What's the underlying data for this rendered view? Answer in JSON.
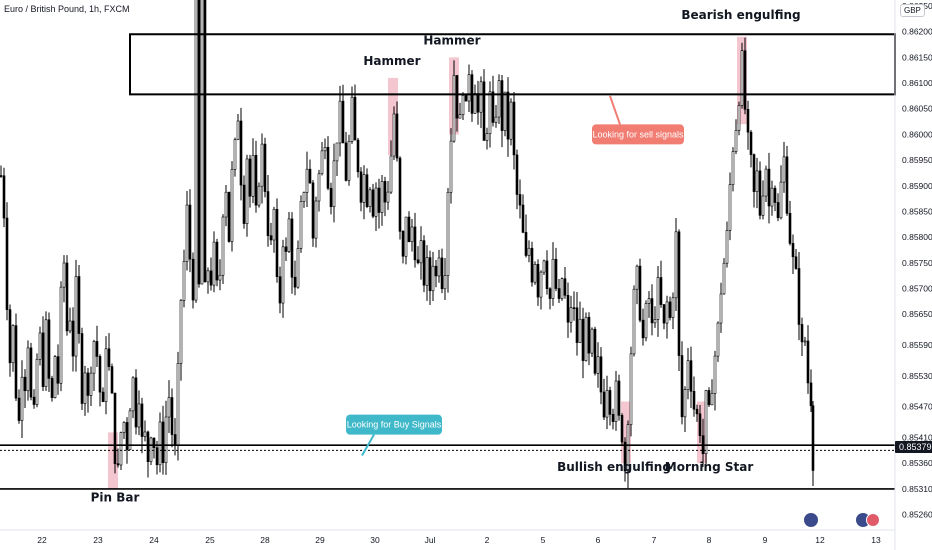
{
  "header": {
    "symbol_title": "Euro / British Pound, 1h, FXCM",
    "currency": "GBP"
  },
  "last_price": "0.85379",
  "colors": {
    "candle": "#000000",
    "highlight": "#f3c6d0",
    "sell_callout": "#f07c72",
    "buy_callout": "#3fb8c9",
    "zone_border": "#000000"
  },
  "chart_data": {
    "type": "candlestick",
    "title": "Euro / British Pound, 1h, FXCM",
    "ylim": [
      0.8523,
      0.8625
    ],
    "y_ticks": [
      "0.86250",
      "0.86200",
      "0.86150",
      "0.86100",
      "0.86050",
      "0.86000",
      "0.85950",
      "0.85900",
      "0.85850",
      "0.85800",
      "0.85750",
      "0.85700",
      "0.85650",
      "0.85590",
      "0.85530",
      "0.85470",
      "0.85410",
      "0.85360",
      "0.85310",
      "0.85260"
    ],
    "x_ticks": [
      "22",
      "23",
      "24",
      "25",
      "28",
      "29",
      "30",
      "Jul",
      "2",
      "5",
      "6",
      "7",
      "8",
      "9",
      "12",
      "13"
    ],
    "price_path": [
      [
        0,
        0.8592
      ],
      [
        3,
        0.8585
      ],
      [
        6,
        0.8568
      ],
      [
        9,
        0.8556
      ],
      [
        12,
        0.8562
      ],
      [
        15,
        0.855
      ],
      [
        18,
        0.8544
      ],
      [
        21,
        0.8555
      ],
      [
        24,
        0.8552
      ],
      [
        27,
        0.856
      ],
      [
        30,
        0.8548
      ],
      [
        33,
        0.8545
      ],
      [
        36,
        0.8556
      ],
      [
        39,
        0.856
      ],
      [
        42,
        0.8553
      ],
      [
        45,
        0.8562
      ],
      [
        48,
        0.8552
      ],
      [
        51,
        0.8548
      ],
      [
        54,
        0.8557
      ],
      [
        57,
        0.8552
      ],
      [
        60,
        0.8568
      ],
      [
        63,
        0.8575
      ],
      [
        66,
        0.8562
      ],
      [
        69,
        0.8565
      ],
      [
        72,
        0.8558
      ],
      [
        75,
        0.857
      ],
      [
        78,
        0.856
      ],
      [
        81,
        0.855
      ],
      [
        84,
        0.8555
      ],
      [
        87,
        0.8548
      ],
      [
        90,
        0.8556
      ],
      [
        93,
        0.856
      ],
      [
        96,
        0.8557
      ],
      [
        99,
        0.855
      ],
      [
        102,
        0.8546
      ],
      [
        105,
        0.856
      ],
      [
        108,
        0.8554
      ],
      [
        111,
        0.8548
      ],
      [
        114,
        0.8538
      ],
      [
        117,
        0.8534
      ],
      [
        120,
        0.8542
      ],
      [
        123,
        0.8544
      ],
      [
        126,
        0.854
      ],
      [
        129,
        0.8548
      ],
      [
        132,
        0.8552
      ],
      [
        135,
        0.8545
      ],
      [
        138,
        0.855
      ],
      [
        141,
        0.854
      ],
      [
        144,
        0.8541
      ],
      [
        147,
        0.8537
      ],
      [
        150,
        0.8543
      ],
      [
        153,
        0.854
      ],
      [
        156,
        0.8536
      ],
      [
        159,
        0.8542
      ],
      [
        162,
        0.8538
      ],
      [
        165,
        0.8545
      ],
      [
        168,
        0.8549
      ],
      [
        171,
        0.8542
      ],
      [
        174,
        0.8538
      ],
      [
        177,
        0.8553
      ],
      [
        180,
        0.8568
      ],
      [
        183,
        0.8575
      ],
      [
        186,
        0.8585
      ],
      [
        189,
        0.8576
      ],
      [
        192,
        0.857
      ],
      [
        195,
        0.8668
      ],
      [
        198,
        0.857
      ],
      [
        201,
        0.8664
      ],
      [
        204,
        0.8569
      ],
      [
        207,
        0.8574
      ],
      [
        210,
        0.8572
      ],
      [
        213,
        0.8577
      ],
      [
        216,
        0.857
      ],
      [
        219,
        0.8573
      ],
      [
        222,
        0.8586
      ],
      [
        225,
        0.859
      ],
      [
        228,
        0.858
      ],
      [
        231,
        0.8592
      ],
      [
        234,
        0.8597
      ],
      [
        237,
        0.8604
      ],
      [
        240,
        0.8592
      ],
      [
        243,
        0.8585
      ],
      [
        246,
        0.8596
      ],
      [
        249,
        0.8588
      ],
      [
        252,
        0.8594
      ],
      [
        255,
        0.8584
      ],
      [
        258,
        0.8592
      ],
      [
        261,
        0.8597
      ],
      [
        264,
        0.859
      ],
      [
        267,
        0.8582
      ],
      [
        270,
        0.8578
      ],
      [
        273,
        0.8585
      ],
      [
        276,
        0.857
      ],
      [
        279,
        0.8568
      ],
      [
        282,
        0.858
      ],
      [
        285,
        0.8576
      ],
      [
        288,
        0.8583
      ],
      [
        291,
        0.8574
      ],
      [
        294,
        0.8569
      ],
      [
        297,
        0.8576
      ],
      [
        300,
        0.8585
      ],
      [
        303,
        0.859
      ],
      [
        306,
        0.8594
      ],
      [
        309,
        0.859
      ],
      [
        312,
        0.858
      ],
      [
        315,
        0.8588
      ],
      [
        318,
        0.8592
      ],
      [
        321,
        0.8596
      ],
      [
        324,
        0.86
      ],
      [
        327,
        0.8592
      ],
      [
        330,
        0.8588
      ],
      [
        333,
        0.8594
      ],
      [
        336,
        0.86
      ],
      [
        339,
        0.8604
      ],
      [
        342,
        0.8598
      ],
      [
        345,
        0.8592
      ],
      [
        348,
        0.8598
      ],
      [
        351,
        0.8605
      ],
      [
        354,
        0.8598
      ],
      [
        357,
        0.8594
      ],
      [
        360,
        0.8589
      ],
      [
        363,
        0.8592
      ],
      [
        366,
        0.8588
      ],
      [
        369,
        0.8591
      ],
      [
        372,
        0.8586
      ],
      [
        375,
        0.859
      ],
      [
        378,
        0.8585
      ],
      [
        381,
        0.859
      ],
      [
        384,
        0.8587
      ],
      [
        387,
        0.859
      ],
      [
        390,
        0.8596
      ],
      [
        393,
        0.8604
      ],
      [
        396,
        0.8594
      ],
      [
        399,
        0.858
      ],
      [
        402,
        0.8575
      ],
      [
        405,
        0.8585
      ],
      [
        408,
        0.8578
      ],
      [
        411,
        0.8582
      ],
      [
        414,
        0.8578
      ],
      [
        417,
        0.8574
      ],
      [
        420,
        0.8577
      ],
      [
        423,
        0.8572
      ],
      [
        426,
        0.8574
      ],
      [
        429,
        0.857
      ],
      [
        432,
        0.8576
      ],
      [
        435,
        0.8572
      ],
      [
        438,
        0.8578
      ],
      [
        441,
        0.8572
      ],
      [
        444,
        0.8575
      ],
      [
        447,
        0.859
      ],
      [
        450,
        0.86
      ],
      [
        453,
        0.8612
      ],
      [
        456,
        0.8605
      ],
      [
        459,
        0.8602
      ],
      [
        462,
        0.861
      ],
      [
        465,
        0.8604
      ],
      [
        468,
        0.8613
      ],
      [
        471,
        0.8606
      ],
      [
        474,
        0.861
      ],
      [
        477,
        0.8604
      ],
      [
        480,
        0.8608
      ],
      [
        483,
        0.8598
      ],
      [
        486,
        0.8602
      ],
      [
        489,
        0.8607
      ],
      [
        492,
        0.86
      ],
      [
        495,
        0.8605
      ],
      [
        498,
        0.8609
      ],
      [
        501,
        0.8602
      ],
      [
        504,
        0.8606
      ],
      [
        507,
        0.86
      ],
      [
        510,
        0.8605
      ],
      [
        513,
        0.8595
      ],
      [
        516,
        0.8588
      ],
      [
        519,
        0.8585
      ],
      [
        522,
        0.858
      ],
      [
        525,
        0.8575
      ],
      [
        528,
        0.8578
      ],
      [
        531,
        0.8573
      ],
      [
        534,
        0.8576
      ],
      [
        537,
        0.857
      ],
      [
        540,
        0.8574
      ],
      [
        543,
        0.8577
      ],
      [
        546,
        0.8572
      ],
      [
        549,
        0.8568
      ],
      [
        552,
        0.8574
      ],
      [
        555,
        0.857
      ],
      [
        558,
        0.8566
      ],
      [
        561,
        0.8572
      ],
      [
        564,
        0.8568
      ],
      [
        567,
        0.8562
      ],
      [
        570,
        0.8567
      ],
      [
        573,
        0.8565
      ],
      [
        576,
        0.856
      ],
      [
        579,
        0.8563
      ],
      [
        582,
        0.8558
      ],
      [
        585,
        0.8562
      ],
      [
        588,
        0.8556
      ],
      [
        591,
        0.856
      ],
      [
        594,
        0.8552
      ],
      [
        597,
        0.8555
      ],
      [
        600,
        0.855
      ],
      [
        603,
        0.8547
      ],
      [
        606,
        0.8552
      ],
      [
        609,
        0.8548
      ],
      [
        612,
        0.8546
      ],
      [
        615,
        0.855
      ],
      [
        618,
        0.8544
      ],
      [
        621,
        0.8542
      ],
      [
        624,
        0.8535
      ],
      [
        627,
        0.8546
      ],
      [
        630,
        0.8558
      ],
      [
        633,
        0.8568
      ],
      [
        636,
        0.8572
      ],
      [
        639,
        0.8566
      ],
      [
        642,
        0.856
      ],
      [
        645,
        0.8565
      ],
      [
        648,
        0.8568
      ],
      [
        651,
        0.8562
      ],
      [
        654,
        0.8566
      ],
      [
        657,
        0.857
      ],
      [
        660,
        0.8566
      ],
      [
        663,
        0.8562
      ],
      [
        666,
        0.8567
      ],
      [
        669,
        0.8564
      ],
      [
        672,
        0.857
      ],
      [
        675,
        0.858
      ],
      [
        678,
        0.8556
      ],
      [
        681,
        0.8545
      ],
      [
        684,
        0.855
      ],
      [
        687,
        0.8557
      ],
      [
        690,
        0.8552
      ],
      [
        693,
        0.8547
      ],
      [
        696,
        0.8545
      ],
      [
        699,
        0.8543
      ],
      [
        702,
        0.8538
      ],
      [
        705,
        0.8548
      ],
      [
        708,
        0.8545
      ],
      [
        711,
        0.8552
      ],
      [
        714,
        0.8557
      ],
      [
        717,
        0.8562
      ],
      [
        720,
        0.857
      ],
      [
        723,
        0.8575
      ],
      [
        726,
        0.858
      ],
      [
        729,
        0.859
      ],
      [
        732,
        0.8598
      ],
      [
        735,
        0.8602
      ],
      [
        738,
        0.8608
      ],
      [
        741,
        0.8614
      ],
      [
        744,
        0.8605
      ],
      [
        747,
        0.8598
      ],
      [
        750,
        0.8594
      ],
      [
        753,
        0.8588
      ],
      [
        756,
        0.8592
      ],
      [
        759,
        0.8585
      ],
      [
        762,
        0.859
      ],
      [
        765,
        0.8594
      ],
      [
        768,
        0.8586
      ],
      [
        771,
        0.8592
      ],
      [
        774,
        0.8588
      ],
      [
        777,
        0.8583
      ],
      [
        780,
        0.859
      ],
      [
        783,
        0.8595
      ],
      [
        786,
        0.8587
      ],
      [
        789,
        0.858
      ],
      [
        792,
        0.8575
      ],
      [
        795,
        0.8572
      ],
      [
        798,
        0.8565
      ],
      [
        801,
        0.8558
      ],
      [
        804,
        0.856
      ],
      [
        807,
        0.8552
      ],
      [
        810,
        0.8549
      ],
      [
        812,
        0.8537
      ]
    ],
    "horizontal_lines": [
      {
        "name": "upper-support",
        "y": 0.85395
      },
      {
        "name": "support-dotted",
        "y": 0.85385,
        "style": "dotted"
      },
      {
        "name": "lower-support",
        "y": 0.8531
      }
    ],
    "resistance_zone": {
      "x_start": 130,
      "x_end": 895,
      "y_top": 0.86195,
      "y_bottom": 0.86078
    },
    "highlights": [
      {
        "x": 113,
        "y_top": 0.8542,
        "y_bottom": 0.8531
      },
      {
        "x": 393,
        "y_top": 0.8611,
        "y_bottom": 0.8596
      },
      {
        "x": 454,
        "y_top": 0.8615,
        "y_bottom": 0.86
      },
      {
        "x": 626,
        "y_top": 0.8548,
        "y_bottom": 0.8536
      },
      {
        "x": 702,
        "y_top": 0.8548,
        "y_bottom": 0.8536
      },
      {
        "x": 742,
        "y_top": 0.8619,
        "y_bottom": 0.8602
      }
    ],
    "annotations": [
      {
        "text": "Pin Bar",
        "x": 115,
        "y": 0.85285
      },
      {
        "text": "Hammer",
        "x": 392,
        "y": 0.86135
      },
      {
        "text": "Hammer",
        "x": 452,
        "y": 0.86175
      },
      {
        "text": "Bearish engulfing",
        "x": 741,
        "y": 0.86225
      },
      {
        "text": "Bullish engulfing",
        "x": 614,
        "y": 0.85345
      },
      {
        "text": "Morning Star",
        "x": 709,
        "y": 0.85345
      }
    ],
    "callouts": [
      {
        "text": "Looking for sell signals",
        "color": "sell",
        "box_x": 592,
        "box_w": 92,
        "y": 0.86,
        "pointer_x": 610,
        "pointer_y": 0.86075
      },
      {
        "text": "Looking for Buy Signals",
        "color": "buy",
        "box_x": 346,
        "box_w": 96,
        "y": 0.85435,
        "pointer_x": 362,
        "pointer_y": 0.85375
      }
    ]
  }
}
